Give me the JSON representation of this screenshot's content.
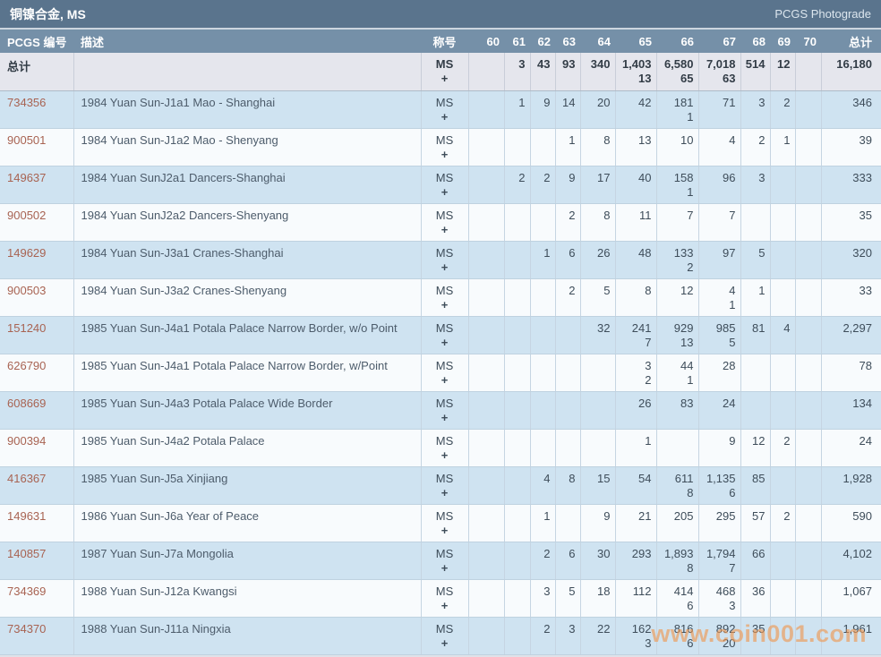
{
  "title_bar": {
    "title": "铜镍合金, MS",
    "photograde_link": "PCGS Photograde"
  },
  "columns": [
    "PCGS 编号",
    "描述",
    "称号",
    "60",
    "61",
    "62",
    "63",
    "64",
    "65",
    "66",
    "67",
    "68",
    "69",
    "70",
    "总计"
  ],
  "designation": {
    "ms": "MS",
    "plus": "+"
  },
  "totals_row": {
    "label": "总计",
    "ms": [
      "",
      "3",
      "43",
      "93",
      "340",
      "1,403",
      "6,580",
      "7,018",
      "514",
      "12",
      ""
    ],
    "plus": [
      "",
      "",
      "",
      "",
      "",
      "13",
      "65",
      "63",
      "",
      "",
      ""
    ],
    "total": "16,180"
  },
  "rows": [
    {
      "id": "734356",
      "desc": "1984 Yuan Sun-J1a1 Mao - Shanghai",
      "ms": [
        "",
        "1",
        "9",
        "14",
        "20",
        "42",
        "181",
        "71",
        "3",
        "2",
        ""
      ],
      "plus": [
        "",
        "",
        "",
        "",
        "",
        "",
        "1",
        "",
        "",
        "",
        ""
      ],
      "total": "346"
    },
    {
      "id": "900501",
      "desc": "1984 Yuan Sun-J1a2 Mao - Shenyang",
      "ms": [
        "",
        "",
        "",
        "1",
        "8",
        "13",
        "10",
        "4",
        "2",
        "1",
        ""
      ],
      "plus": [
        "",
        "",
        "",
        "",
        "",
        "",
        "",
        "",
        "",
        "",
        ""
      ],
      "total": "39"
    },
    {
      "id": "149637",
      "desc": "1984 Yuan SunJ2a1 Dancers-Shanghai",
      "ms": [
        "",
        "2",
        "2",
        "9",
        "17",
        "40",
        "158",
        "96",
        "3",
        "",
        ""
      ],
      "plus": [
        "",
        "",
        "",
        "",
        "",
        "",
        "1",
        "",
        "",
        "",
        ""
      ],
      "total": "333"
    },
    {
      "id": "900502",
      "desc": "1984 Yuan SunJ2a2 Dancers-Shenyang",
      "ms": [
        "",
        "",
        "",
        "2",
        "8",
        "11",
        "7",
        "7",
        "",
        "",
        ""
      ],
      "plus": [
        "",
        "",
        "",
        "",
        "",
        "",
        "",
        "",
        "",
        "",
        ""
      ],
      "total": "35"
    },
    {
      "id": "149629",
      "desc": "1984 Yuan Sun-J3a1 Cranes-Shanghai",
      "ms": [
        "",
        "",
        "1",
        "6",
        "26",
        "48",
        "133",
        "97",
        "5",
        "",
        ""
      ],
      "plus": [
        "",
        "",
        "",
        "",
        "",
        "",
        "2",
        "",
        "",
        "",
        ""
      ],
      "total": "320"
    },
    {
      "id": "900503",
      "desc": "1984 Yuan Sun-J3a2 Cranes-Shenyang",
      "ms": [
        "",
        "",
        "",
        "2",
        "5",
        "8",
        "12",
        "4",
        "1",
        "",
        ""
      ],
      "plus": [
        "",
        "",
        "",
        "",
        "",
        "",
        "",
        "1",
        "",
        "",
        ""
      ],
      "total": "33"
    },
    {
      "id": "151240",
      "desc": "1985 Yuan Sun-J4a1 Potala Palace Narrow Border, w/o Point",
      "ms": [
        "",
        "",
        "",
        "",
        "32",
        "241",
        "929",
        "985",
        "81",
        "4",
        ""
      ],
      "plus": [
        "",
        "",
        "",
        "",
        "",
        "7",
        "13",
        "5",
        "",
        "",
        ""
      ],
      "total": "2,297"
    },
    {
      "id": "626790",
      "desc": "1985 Yuan Sun-J4a1 Potala Palace Narrow Border, w/Point",
      "ms": [
        "",
        "",
        "",
        "",
        "",
        "3",
        "44",
        "28",
        "",
        "",
        ""
      ],
      "plus": [
        "",
        "",
        "",
        "",
        "",
        "2",
        "1",
        "",
        "",
        "",
        ""
      ],
      "total": "78"
    },
    {
      "id": "608669",
      "desc": "1985 Yuan Sun-J4a3 Potala Palace Wide Border",
      "ms": [
        "",
        "",
        "",
        "",
        "",
        "26",
        "83",
        "24",
        "",
        "",
        ""
      ],
      "plus": [
        "",
        "",
        "",
        "",
        "",
        "",
        "",
        "",
        "",
        "",
        ""
      ],
      "total": "134"
    },
    {
      "id": "900394",
      "desc": "1985 Yuan Sun-J4a2 Potala Palace",
      "ms": [
        "",
        "",
        "",
        "",
        "",
        "1",
        "",
        "9",
        "12",
        "2",
        ""
      ],
      "plus": [
        "",
        "",
        "",
        "",
        "",
        "",
        "",
        "",
        "",
        "",
        ""
      ],
      "total": "24"
    },
    {
      "id": "416367",
      "desc": "1985 Yuan Sun-J5a Xinjiang",
      "ms": [
        "",
        "",
        "4",
        "8",
        "15",
        "54",
        "611",
        "1,135",
        "85",
        "",
        ""
      ],
      "plus": [
        "",
        "",
        "",
        "",
        "",
        "",
        "8",
        "6",
        "",
        "",
        ""
      ],
      "total": "1,928"
    },
    {
      "id": "149631",
      "desc": "1986 Yuan Sun-J6a Year of Peace",
      "ms": [
        "",
        "",
        "1",
        "",
        "9",
        "21",
        "205",
        "295",
        "57",
        "2",
        ""
      ],
      "plus": [
        "",
        "",
        "",
        "",
        "",
        "",
        "",
        "",
        "",
        "",
        ""
      ],
      "total": "590"
    },
    {
      "id": "140857",
      "desc": "1987 Yuan Sun-J7a Mongolia",
      "ms": [
        "",
        "",
        "2",
        "6",
        "30",
        "293",
        "1,893",
        "1,794",
        "66",
        "",
        ""
      ],
      "plus": [
        "",
        "",
        "",
        "",
        "",
        "",
        "8",
        "7",
        "",
        "",
        ""
      ],
      "total": "4,102"
    },
    {
      "id": "734369",
      "desc": "1988 Yuan Sun-J12a Kwangsi",
      "ms": [
        "",
        "",
        "3",
        "5",
        "18",
        "112",
        "414",
        "468",
        "36",
        "",
        ""
      ],
      "plus": [
        "",
        "",
        "",
        "",
        "",
        "",
        "6",
        "3",
        "",
        "",
        ""
      ],
      "total": "1,067"
    },
    {
      "id": "734370",
      "desc": "1988 Yuan Sun-J11a Ningxia",
      "ms": [
        "",
        "",
        "2",
        "3",
        "22",
        "162",
        "816",
        "892",
        "35",
        "",
        ""
      ],
      "plus": [
        "",
        "",
        "",
        "",
        "",
        "3",
        "6",
        "20",
        "",
        "",
        ""
      ],
      "total": "1,961"
    }
  ],
  "watermark": "www.coin001.com",
  "colors": {
    "accent_link": "#a86352",
    "watermark": "#f0964e",
    "title_bar_bg": "#5a748d",
    "column_header_bg": "#7590a8",
    "row_blue_bg": "#cfe3f1",
    "row_white_bg": "#f8fbfd",
    "totals_row_bg": "#e5e6ed"
  }
}
